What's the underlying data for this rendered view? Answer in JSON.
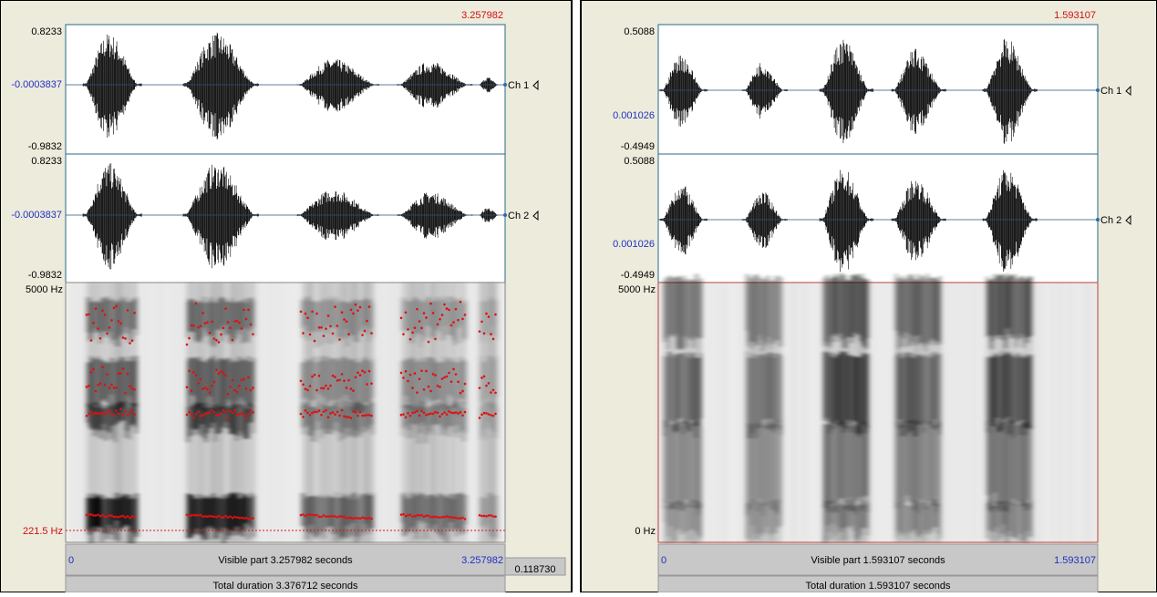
{
  "panels": [
    {
      "cursor_time": "3.257982",
      "channels": [
        {
          "max": "0.8233",
          "zero": "-0.0003837",
          "min": "-0.9832",
          "label": "Ch 1"
        },
        {
          "max": "0.8233",
          "zero": "-0.0003837",
          "min": "-0.9832",
          "label": "Ch 2"
        }
      ],
      "spectrogram": {
        "top": "5000 Hz",
        "bottom": "221.5 Hz"
      },
      "visible": {
        "start": "0",
        "label": "Visible part 3.257982 seconds",
        "end": "3.257982"
      },
      "extra": "0.118730",
      "total": "Total duration 3.376712 seconds"
    },
    {
      "cursor_time": "1.593107",
      "channels": [
        {
          "max": "0.5088",
          "zero": "0.001026",
          "min": "-0.4949",
          "label": "Ch 1"
        },
        {
          "max": "0.5088",
          "zero": "0.001026",
          "min": "-0.4949",
          "label": "Ch 2"
        }
      ],
      "spectrogram": {
        "top": "5000 Hz",
        "bottom": "0 Hz"
      },
      "visible": {
        "start": "0",
        "label": "Visible part 1.593107 seconds",
        "end": "1.593107"
      },
      "total": "Total duration 1.593107 seconds"
    }
  ]
}
